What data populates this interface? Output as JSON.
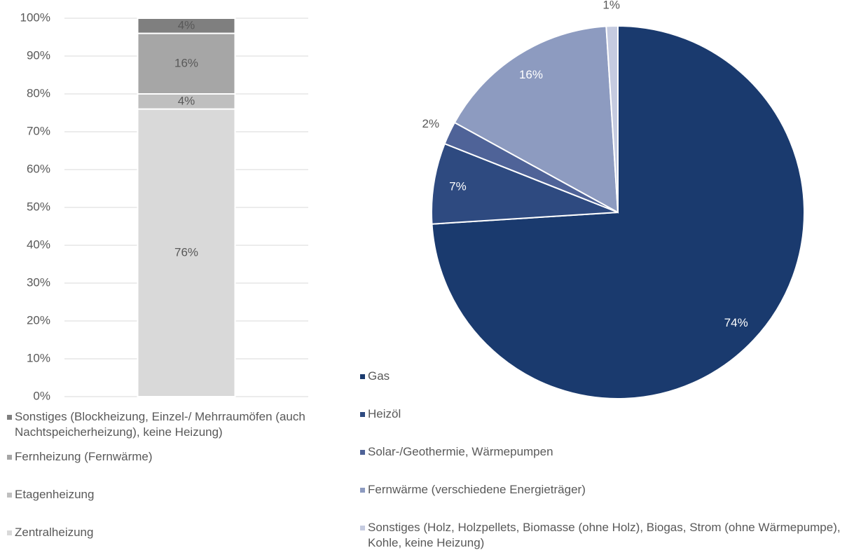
{
  "chart_data": [
    {
      "type": "bar",
      "stacked": true,
      "categories": [
        null
      ],
      "series": [
        {
          "name": "Zentralheizung",
          "color": "#d9d9d9",
          "values": [
            76
          ],
          "value_labels": [
            "76%"
          ]
        },
        {
          "name": "Etagenheizung",
          "color": "#bfbfbf",
          "values": [
            4
          ],
          "value_labels": [
            "4%"
          ]
        },
        {
          "name": "Fernheizung (Fernwärme)",
          "color": "#a6a6a6",
          "values": [
            16
          ],
          "value_labels": [
            "16%"
          ]
        },
        {
          "name": "Sonstiges (Blockheizung, Einzel-/ Mehrraumöfen (auch Nachtspeicherheizung), keine Heizung)",
          "color": "#7f7f7f",
          "values": [
            4
          ],
          "value_labels": [
            "4%"
          ]
        }
      ],
      "ylim": [
        0,
        100
      ],
      "yticks": [
        {
          "value": 0,
          "label": "0%"
        },
        {
          "value": 10,
          "label": "10%"
        },
        {
          "value": 20,
          "label": "20%"
        },
        {
          "value": 30,
          "label": "30%"
        },
        {
          "value": 40,
          "label": "40%"
        },
        {
          "value": 50,
          "label": "50%"
        },
        {
          "value": 60,
          "label": "60%"
        },
        {
          "value": 70,
          "label": "70%"
        },
        {
          "value": 80,
          "label": "80%"
        },
        {
          "value": 90,
          "label": "90%"
        },
        {
          "value": 100,
          "label": "100%"
        }
      ],
      "grid": true
    },
    {
      "type": "pie",
      "categories": [
        "Gas",
        "Heizöl",
        "Solar-/Geothermie, Wärmepumpen",
        "Fernwärme (verschiedene Energieträger)",
        "Sonstiges (Holz, Holzpellets, Biomasse (ohne Holz), Biogas, Strom (ohne Wärmepumpe), Kohle, keine Heizung)"
      ],
      "values": [
        74,
        7,
        2,
        16,
        1
      ],
      "value_labels": [
        "74%",
        "7%",
        "2%",
        "16%",
        "1%"
      ],
      "colors": [
        "#1a3a6e",
        "#2e4a80",
        "#4f6398",
        "#8d9bc0",
        "#c5cbe0"
      ]
    }
  ]
}
